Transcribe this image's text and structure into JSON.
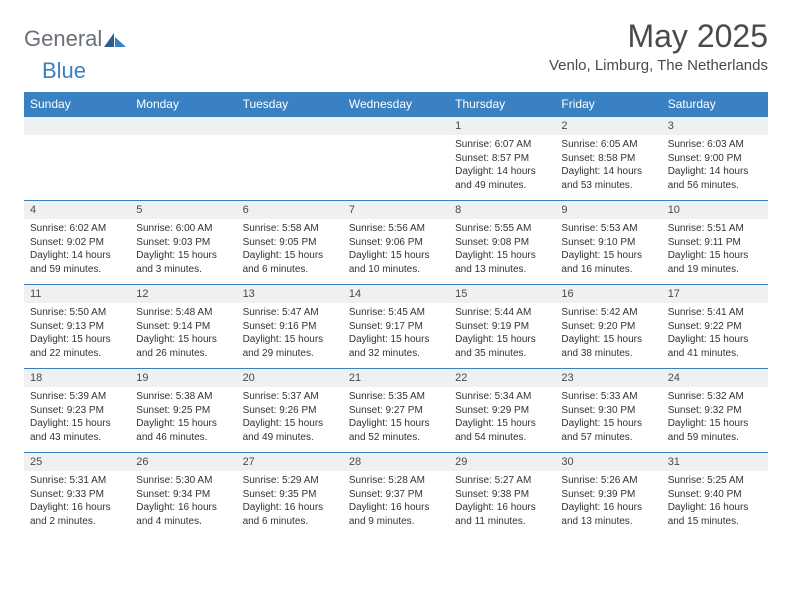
{
  "brand": {
    "part1": "General",
    "part2": "Blue"
  },
  "title": "May 2025",
  "location": "Venlo, Limburg, The Netherlands",
  "colors": {
    "accent": "#3a81c4",
    "numrow_bg": "#eef0f2",
    "text": "#333333",
    "header_text": "#4a4a4a"
  },
  "daynames": [
    "Sunday",
    "Monday",
    "Tuesday",
    "Wednesday",
    "Thursday",
    "Friday",
    "Saturday"
  ],
  "weeks": [
    {
      "nums": [
        "",
        "",
        "",
        "",
        "1",
        "2",
        "3"
      ],
      "cells": [
        null,
        null,
        null,
        null,
        {
          "sunrise": "Sunrise: 6:07 AM",
          "sunset": "Sunset: 8:57 PM",
          "day1": "Daylight: 14 hours",
          "day2": "and 49 minutes."
        },
        {
          "sunrise": "Sunrise: 6:05 AM",
          "sunset": "Sunset: 8:58 PM",
          "day1": "Daylight: 14 hours",
          "day2": "and 53 minutes."
        },
        {
          "sunrise": "Sunrise: 6:03 AM",
          "sunset": "Sunset: 9:00 PM",
          "day1": "Daylight: 14 hours",
          "day2": "and 56 minutes."
        }
      ]
    },
    {
      "nums": [
        "4",
        "5",
        "6",
        "7",
        "8",
        "9",
        "10"
      ],
      "cells": [
        {
          "sunrise": "Sunrise: 6:02 AM",
          "sunset": "Sunset: 9:02 PM",
          "day1": "Daylight: 14 hours",
          "day2": "and 59 minutes."
        },
        {
          "sunrise": "Sunrise: 6:00 AM",
          "sunset": "Sunset: 9:03 PM",
          "day1": "Daylight: 15 hours",
          "day2": "and 3 minutes."
        },
        {
          "sunrise": "Sunrise: 5:58 AM",
          "sunset": "Sunset: 9:05 PM",
          "day1": "Daylight: 15 hours",
          "day2": "and 6 minutes."
        },
        {
          "sunrise": "Sunrise: 5:56 AM",
          "sunset": "Sunset: 9:06 PM",
          "day1": "Daylight: 15 hours",
          "day2": "and 10 minutes."
        },
        {
          "sunrise": "Sunrise: 5:55 AM",
          "sunset": "Sunset: 9:08 PM",
          "day1": "Daylight: 15 hours",
          "day2": "and 13 minutes."
        },
        {
          "sunrise": "Sunrise: 5:53 AM",
          "sunset": "Sunset: 9:10 PM",
          "day1": "Daylight: 15 hours",
          "day2": "and 16 minutes."
        },
        {
          "sunrise": "Sunrise: 5:51 AM",
          "sunset": "Sunset: 9:11 PM",
          "day1": "Daylight: 15 hours",
          "day2": "and 19 minutes."
        }
      ]
    },
    {
      "nums": [
        "11",
        "12",
        "13",
        "14",
        "15",
        "16",
        "17"
      ],
      "cells": [
        {
          "sunrise": "Sunrise: 5:50 AM",
          "sunset": "Sunset: 9:13 PM",
          "day1": "Daylight: 15 hours",
          "day2": "and 22 minutes."
        },
        {
          "sunrise": "Sunrise: 5:48 AM",
          "sunset": "Sunset: 9:14 PM",
          "day1": "Daylight: 15 hours",
          "day2": "and 26 minutes."
        },
        {
          "sunrise": "Sunrise: 5:47 AM",
          "sunset": "Sunset: 9:16 PM",
          "day1": "Daylight: 15 hours",
          "day2": "and 29 minutes."
        },
        {
          "sunrise": "Sunrise: 5:45 AM",
          "sunset": "Sunset: 9:17 PM",
          "day1": "Daylight: 15 hours",
          "day2": "and 32 minutes."
        },
        {
          "sunrise": "Sunrise: 5:44 AM",
          "sunset": "Sunset: 9:19 PM",
          "day1": "Daylight: 15 hours",
          "day2": "and 35 minutes."
        },
        {
          "sunrise": "Sunrise: 5:42 AM",
          "sunset": "Sunset: 9:20 PM",
          "day1": "Daylight: 15 hours",
          "day2": "and 38 minutes."
        },
        {
          "sunrise": "Sunrise: 5:41 AM",
          "sunset": "Sunset: 9:22 PM",
          "day1": "Daylight: 15 hours",
          "day2": "and 41 minutes."
        }
      ]
    },
    {
      "nums": [
        "18",
        "19",
        "20",
        "21",
        "22",
        "23",
        "24"
      ],
      "cells": [
        {
          "sunrise": "Sunrise: 5:39 AM",
          "sunset": "Sunset: 9:23 PM",
          "day1": "Daylight: 15 hours",
          "day2": "and 43 minutes."
        },
        {
          "sunrise": "Sunrise: 5:38 AM",
          "sunset": "Sunset: 9:25 PM",
          "day1": "Daylight: 15 hours",
          "day2": "and 46 minutes."
        },
        {
          "sunrise": "Sunrise: 5:37 AM",
          "sunset": "Sunset: 9:26 PM",
          "day1": "Daylight: 15 hours",
          "day2": "and 49 minutes."
        },
        {
          "sunrise": "Sunrise: 5:35 AM",
          "sunset": "Sunset: 9:27 PM",
          "day1": "Daylight: 15 hours",
          "day2": "and 52 minutes."
        },
        {
          "sunrise": "Sunrise: 5:34 AM",
          "sunset": "Sunset: 9:29 PM",
          "day1": "Daylight: 15 hours",
          "day2": "and 54 minutes."
        },
        {
          "sunrise": "Sunrise: 5:33 AM",
          "sunset": "Sunset: 9:30 PM",
          "day1": "Daylight: 15 hours",
          "day2": "and 57 minutes."
        },
        {
          "sunrise": "Sunrise: 5:32 AM",
          "sunset": "Sunset: 9:32 PM",
          "day1": "Daylight: 15 hours",
          "day2": "and 59 minutes."
        }
      ]
    },
    {
      "nums": [
        "25",
        "26",
        "27",
        "28",
        "29",
        "30",
        "31"
      ],
      "cells": [
        {
          "sunrise": "Sunrise: 5:31 AM",
          "sunset": "Sunset: 9:33 PM",
          "day1": "Daylight: 16 hours",
          "day2": "and 2 minutes."
        },
        {
          "sunrise": "Sunrise: 5:30 AM",
          "sunset": "Sunset: 9:34 PM",
          "day1": "Daylight: 16 hours",
          "day2": "and 4 minutes."
        },
        {
          "sunrise": "Sunrise: 5:29 AM",
          "sunset": "Sunset: 9:35 PM",
          "day1": "Daylight: 16 hours",
          "day2": "and 6 minutes."
        },
        {
          "sunrise": "Sunrise: 5:28 AM",
          "sunset": "Sunset: 9:37 PM",
          "day1": "Daylight: 16 hours",
          "day2": "and 9 minutes."
        },
        {
          "sunrise": "Sunrise: 5:27 AM",
          "sunset": "Sunset: 9:38 PM",
          "day1": "Daylight: 16 hours",
          "day2": "and 11 minutes."
        },
        {
          "sunrise": "Sunrise: 5:26 AM",
          "sunset": "Sunset: 9:39 PM",
          "day1": "Daylight: 16 hours",
          "day2": "and 13 minutes."
        },
        {
          "sunrise": "Sunrise: 5:25 AM",
          "sunset": "Sunset: 9:40 PM",
          "day1": "Daylight: 16 hours",
          "day2": "and 15 minutes."
        }
      ]
    }
  ]
}
